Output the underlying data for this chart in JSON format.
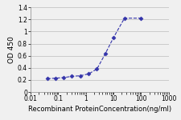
{
  "x": [
    0.04,
    0.08,
    0.16,
    0.31,
    0.63,
    1.25,
    2.5,
    5,
    10,
    25,
    100
  ],
  "y": [
    0.22,
    0.23,
    0.24,
    0.26,
    0.27,
    0.3,
    0.38,
    0.63,
    0.9,
    1.22,
    1.22
  ],
  "line_color": "#3333AA",
  "marker": "D",
  "marker_size": 2.5,
  "marker_facecolor": "#3333AA",
  "xlabel": "Recombinant ProteinConcentration(ng/ml)",
  "ylabel": "OD 450",
  "xlim": [
    0.01,
    1000
  ],
  "ylim": [
    0,
    1.4
  ],
  "yticks": [
    0,
    0.2,
    0.4,
    0.6,
    0.8,
    1.0,
    1.2,
    1.4
  ],
  "xticks": [
    0.01,
    0.1,
    1,
    10,
    100,
    1000
  ],
  "xtick_labels": [
    "0.01",
    "0.1",
    "1",
    "10",
    "100",
    "1000"
  ],
  "ytick_labels": [
    "0",
    "0.2",
    "0.4",
    "0.6",
    "0.8",
    "1",
    "1.2",
    "1.4"
  ],
  "xlabel_fontsize": 6.0,
  "ylabel_fontsize": 6.5,
  "tick_fontsize": 5.5,
  "background_color": "#f0f0f0",
  "plot_bg_color": "#f0f0f0",
  "grid_color": "#bbbbbb",
  "linewidth": 0.8
}
